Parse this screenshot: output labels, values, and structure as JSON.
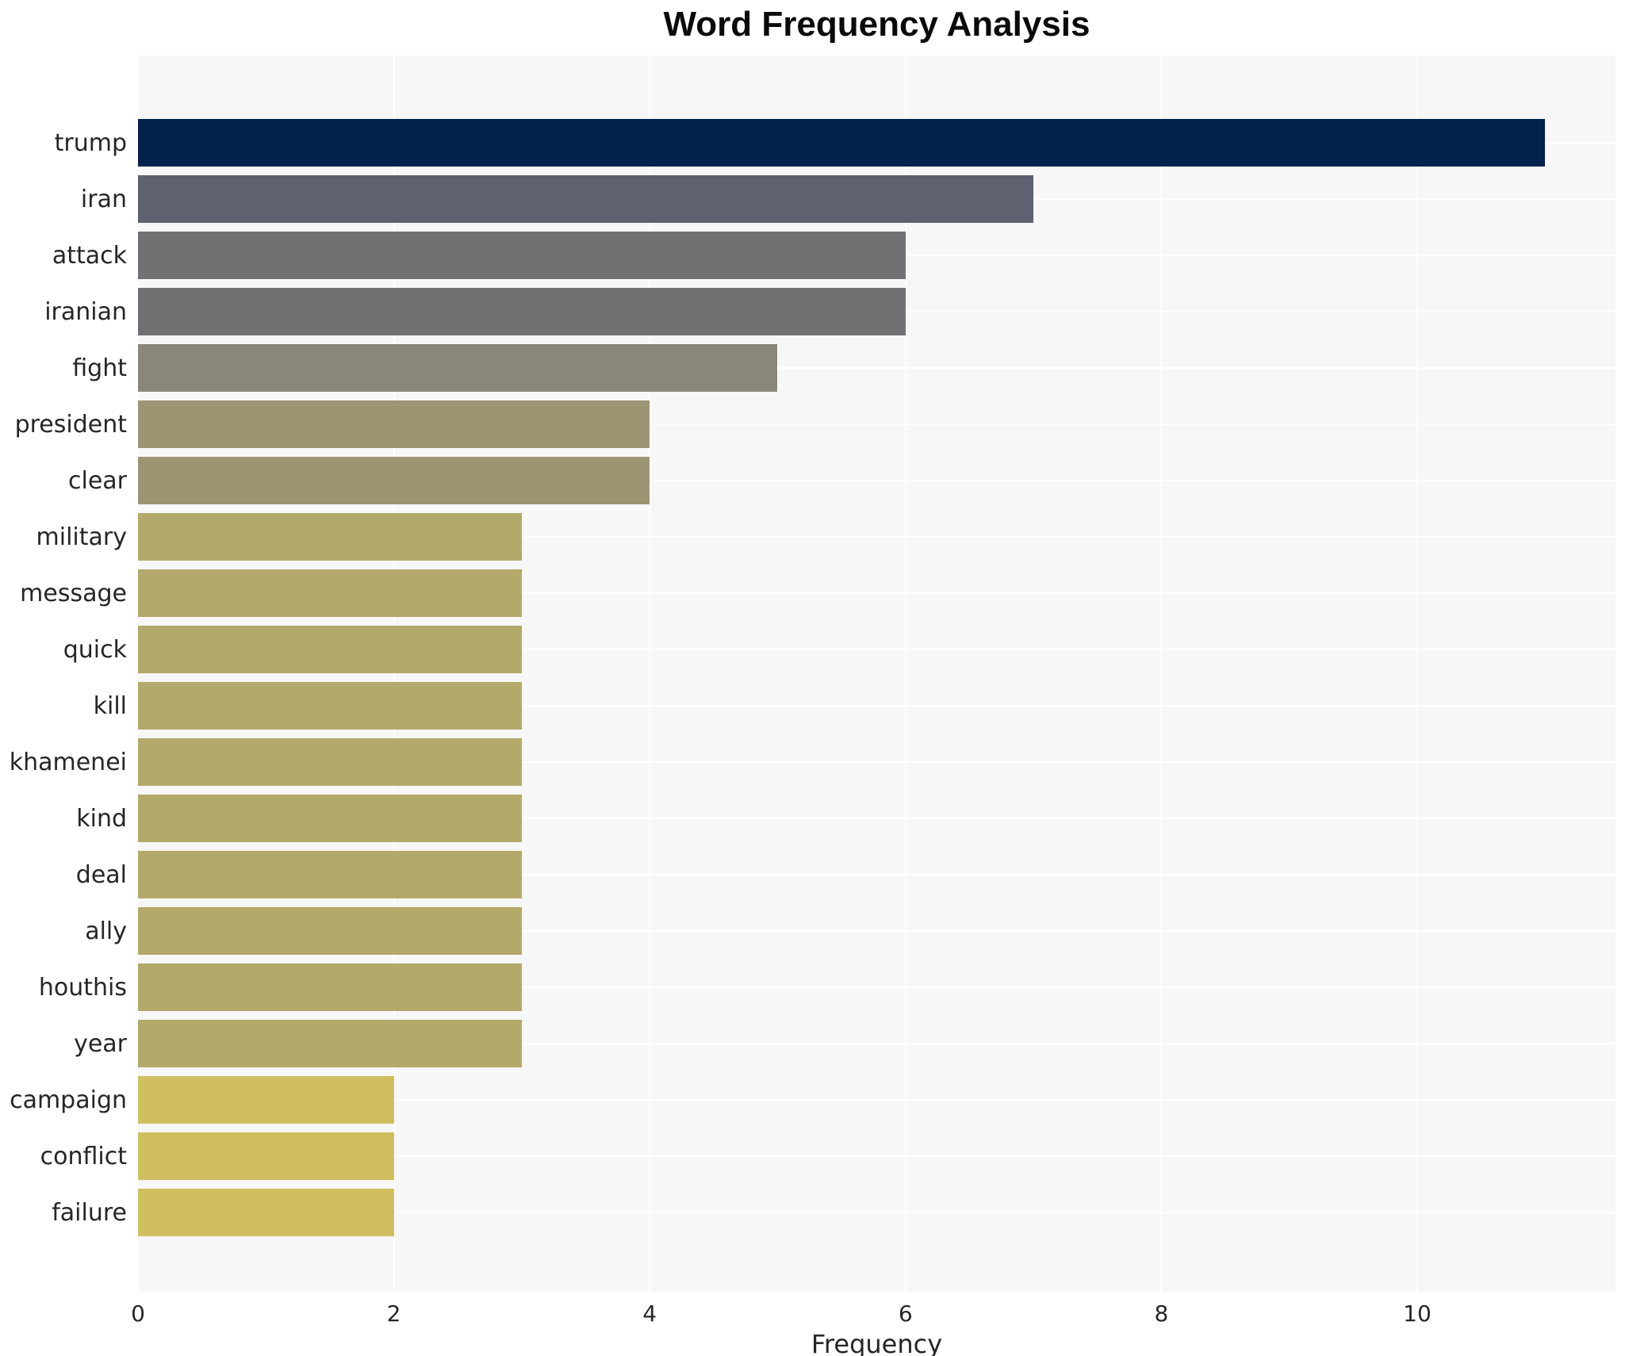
{
  "chart_data": {
    "type": "bar",
    "orientation": "horizontal",
    "title": "Word Frequency Analysis",
    "xlabel": "Frequency",
    "ylabel": "",
    "categories": [
      "trump",
      "iran",
      "attack",
      "iranian",
      "fight",
      "president",
      "clear",
      "military",
      "message",
      "quick",
      "kill",
      "khamenei",
      "kind",
      "deal",
      "ally",
      "houthis",
      "year",
      "campaign",
      "conflict",
      "failure"
    ],
    "values": [
      11,
      7,
      6,
      6,
      5,
      4,
      4,
      3,
      3,
      3,
      3,
      3,
      3,
      3,
      3,
      3,
      3,
      2,
      2,
      2
    ],
    "bar_colors": [
      "#02234e",
      "#5d6170",
      "#717174",
      "#717174",
      "#8a8778",
      "#9c9574",
      "#9c9574",
      "#b3a96a",
      "#b3a96a",
      "#b3a96a",
      "#b3a96a",
      "#b3a96a",
      "#b3a96a",
      "#b3a96a",
      "#b3a96a",
      "#b3a96a",
      "#b3a96a",
      "#d0bf60",
      "#d0bf60",
      "#d0bf60"
    ],
    "xlim": [
      0,
      11.55
    ],
    "xticks": [
      0,
      2,
      4,
      6,
      8,
      10
    ],
    "grid": true,
    "legend": false,
    "plot_bg_color": "#f7f7f7",
    "grid_color": "#ffffff",
    "figure_bg_color": "#ffffff",
    "title_color": "#0a0a0a",
    "tick_label_color": "#262626"
  }
}
